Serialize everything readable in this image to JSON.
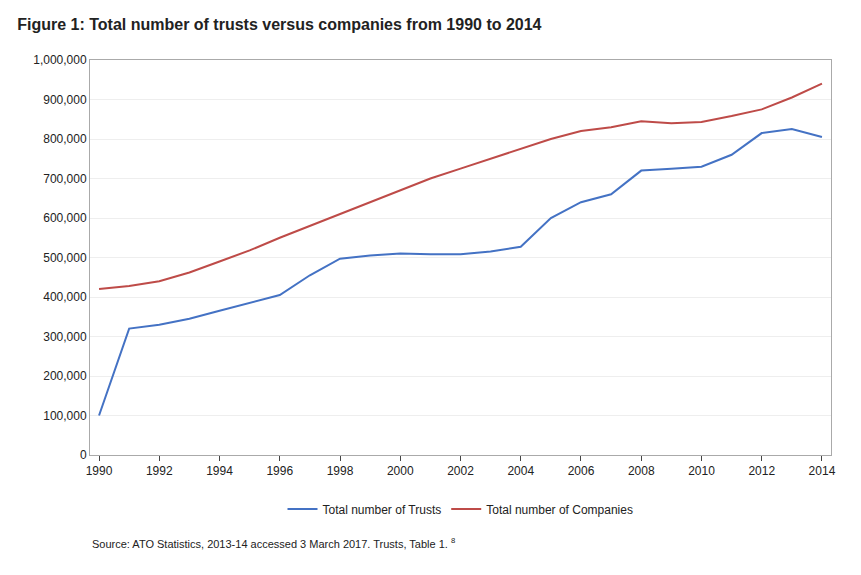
{
  "chart_data": {
    "type": "line",
    "title": "Figure 1: Total number of trusts versus companies from 1990 to 2014",
    "annotations": [
      "Source: ATO Statistics, 2013-14 accessed 3 March 2017. Trusts, Table 1. ",
      "8"
    ],
    "x": [
      1990,
      1991,
      1992,
      1993,
      1994,
      1995,
      1996,
      1997,
      1998,
      1999,
      2000,
      2001,
      2002,
      2003,
      2004,
      2005,
      2006,
      2007,
      2008,
      2009,
      2010,
      2011,
      2012,
      2013,
      2014
    ],
    "series": [
      {
        "name": "Total number of Trusts",
        "color": "#4472C4",
        "values": [
          100000,
          320000,
          330000,
          345000,
          365000,
          385000,
          405000,
          455000,
          497000,
          505000,
          510000,
          508000,
          508000,
          515000,
          527000,
          600000,
          640000,
          660000,
          720000,
          725000,
          730000,
          760000,
          815000,
          825000,
          805000
        ]
      },
      {
        "name": "Total number of Companies",
        "color": "#BE4B48",
        "values": [
          420000,
          428000,
          440000,
          462000,
          490000,
          518000,
          550000,
          580000,
          608000,
          640000,
          670000,
          700000,
          725000,
          750000,
          775000,
          800000,
          820000,
          830000,
          845000,
          840000,
          843000,
          858000,
          875000,
          905000,
          940000
        ]
      }
    ],
    "xlim": [
      1989.7,
      2014.3
    ],
    "xticks": [
      1990,
      1992,
      1994,
      1996,
      1998,
      2000,
      2002,
      2004,
      2006,
      2008,
      2010,
      2012,
      2014
    ],
    "ylim": [
      0,
      1000000
    ],
    "yticks": [
      0,
      {
        "value": 100000,
        "label": "100,000"
      },
      {
        "value": 200000,
        "label": "200,000"
      },
      {
        "value": 300000,
        "label": "300,000"
      },
      {
        "value": 400000,
        "label": "400,000"
      },
      {
        "value": 500000,
        "label": "500,000"
      },
      {
        "value": 600000,
        "label": "600,000"
      },
      {
        "value": 700000,
        "label": "700,000"
      },
      {
        "value": 800000,
        "label": "800,000"
      },
      {
        "value": 900000,
        "label": "900,000"
      },
      {
        "value": 1000000,
        "label": "1,000,000"
      }
    ],
    "grid": "y",
    "legend": "bottom"
  }
}
